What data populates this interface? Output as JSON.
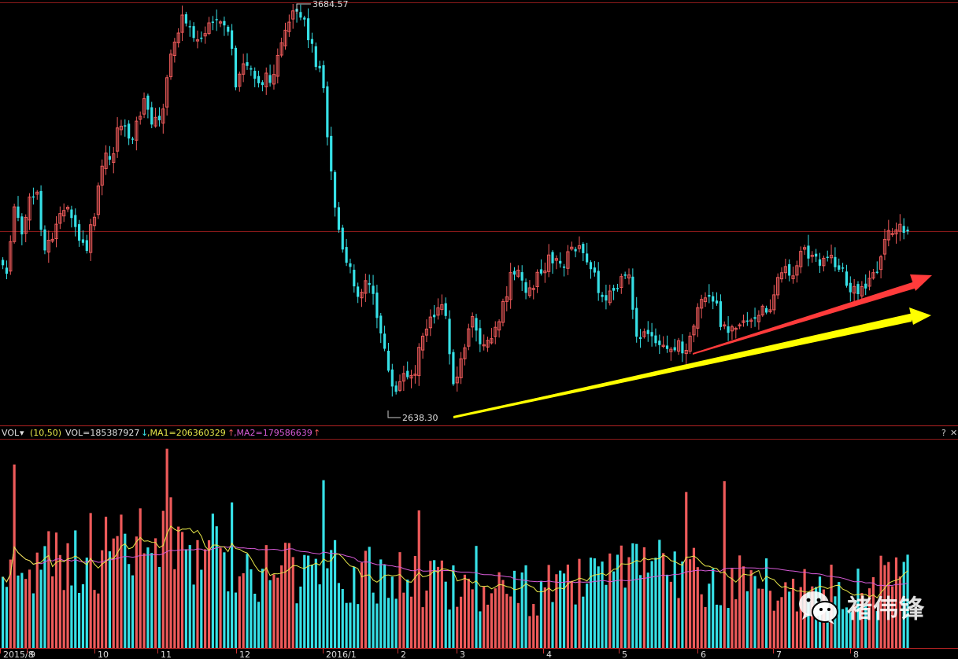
{
  "chart_data": {
    "type": "candlestick+bar",
    "price_high_label": "3684.57",
    "price_low_label": "2638.30",
    "price_range": [
      2600,
      3700
    ],
    "volume_panel": {
      "indicator": "VOL",
      "params": "(10,50)",
      "vol_label": "VOL=185387927",
      "ma1_label": ",MA1=206360329",
      "ma2_label": ",MA2=179586639",
      "vol_arrow": "↓",
      "ma1_arrow": "↑",
      "ma2_arrow": "↑"
    },
    "x_tick_labels": [
      "2015/8",
      "9",
      "10",
      "11",
      "12",
      "2016/1",
      "2",
      "3",
      "4",
      "5",
      "6",
      "7",
      "8"
    ],
    "panel_controls": [
      "?",
      "✕"
    ],
    "trend_arrows": [
      {
        "name": "yellow-trendline",
        "color": "#ffff00"
      },
      {
        "name": "red-trendline",
        "color": "#ff3333"
      }
    ],
    "colors": {
      "up": "#ee5a5a",
      "down": "#36e0e6",
      "ma1": "#e8e84a",
      "ma2": "#d65ad6",
      "grid": "#8b0000"
    }
  },
  "watermark": {
    "text": "褚伟锋",
    "icon": "wechat-icon"
  }
}
